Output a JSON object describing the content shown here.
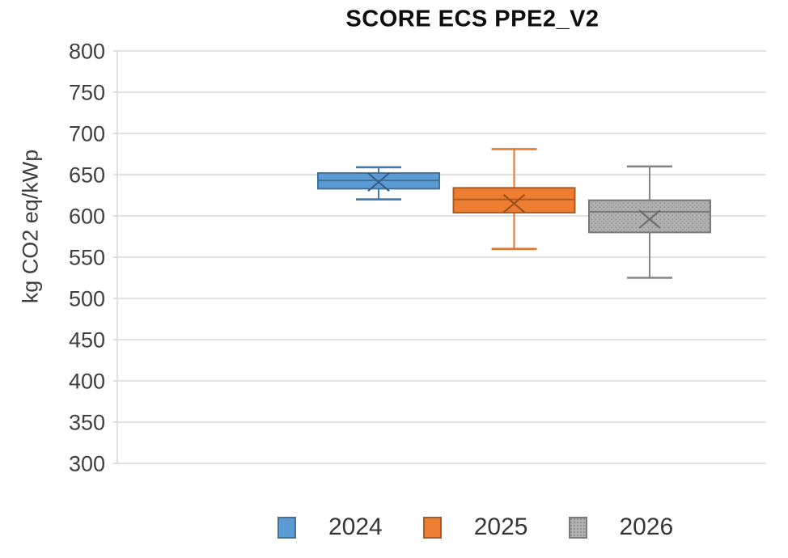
{
  "chart_data": {
    "type": "boxplot",
    "title": "SCORE ECS PPE2_V2",
    "ylabel": "kg CO2 eq/kWp",
    "xlabel": "",
    "ylim": [
      300,
      800
    ],
    "yticks": [
      800,
      750,
      700,
      650,
      600,
      550,
      500,
      450,
      400,
      350,
      300
    ],
    "grid": true,
    "legend_position": "bottom",
    "colors": {
      "gridline": "#d9d9d9",
      "axis_line": "#d0d0d0",
      "tick_label": "#3f3f3f",
      "title": "#0d0d0d",
      "legend_text": "#363636"
    },
    "series": [
      {
        "name": "2024",
        "min": 620,
        "q1": 633,
        "median": 643,
        "mean": 641,
        "q3": 652,
        "max": 659,
        "fill": "#5b9bd5",
        "border": "#41719c",
        "whisker": "#4579ab",
        "mean_color": "#35608a",
        "pattern": false
      },
      {
        "name": "2025",
        "min": 560,
        "q1": 604,
        "median": 620,
        "mean": 615,
        "q3": 634,
        "max": 681,
        "fill": "#ed7d31",
        "border": "#ae5a21",
        "whisker": "#e0762b",
        "mean_color": "#9e5114",
        "pattern": false
      },
      {
        "name": "2026",
        "min": 525,
        "q1": 580,
        "median": 605,
        "mean": 596,
        "q3": 619,
        "max": 660,
        "fill": "#b1b1b1",
        "border": "#7a7a7a",
        "whisker": "#858585",
        "mean_color": "#6e6e6e",
        "pattern": true
      }
    ]
  }
}
